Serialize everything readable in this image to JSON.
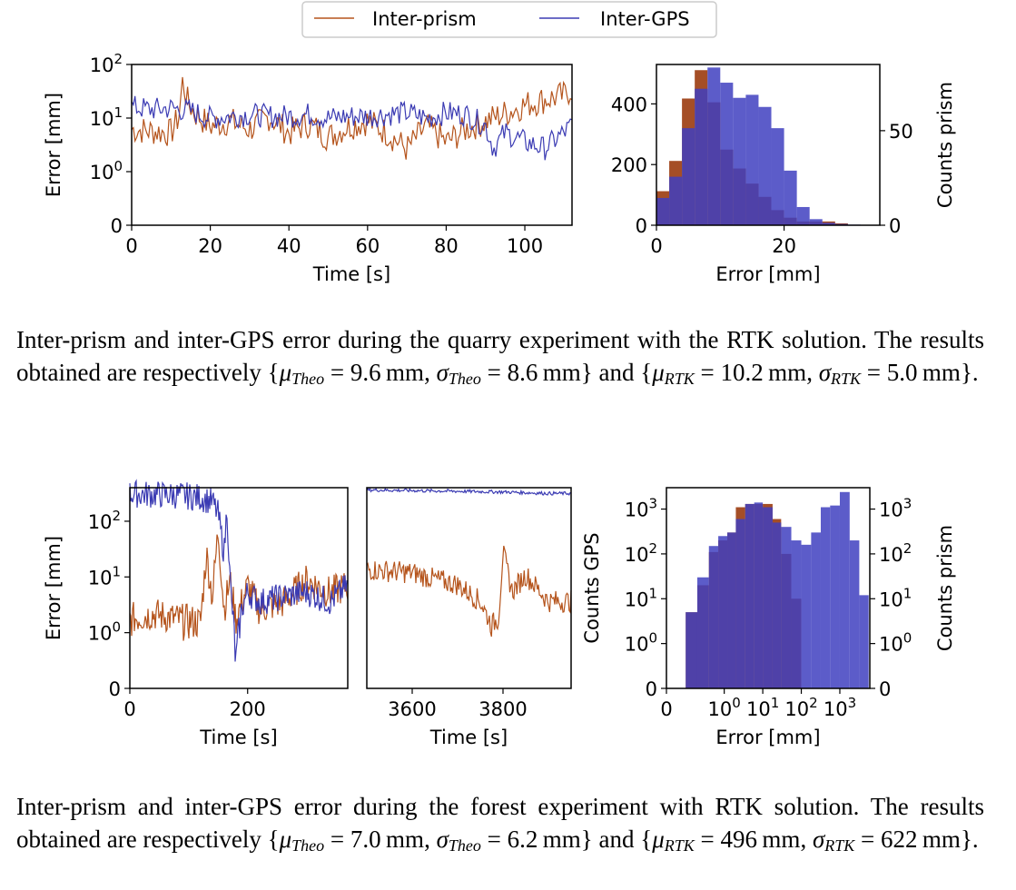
{
  "colors": {
    "prism": "#b5541c",
    "gps": "#3b3bb3",
    "hist_prism": "#a0441a",
    "hist_gps": "#3f3fbf"
  },
  "legend": {
    "prism_label": "Inter-prism",
    "gps_label": "Inter-GPS"
  },
  "chart_data": [
    {
      "type": "line",
      "name": "quarry-timeseries",
      "xlabel": "Time [s]",
      "ylabel": "Error [mm]",
      "xlim": [
        0,
        112
      ],
      "yscale": "symlog",
      "ylim": [
        0,
        100
      ],
      "x_ticks": [
        "0",
        "20",
        "40",
        "60",
        "80",
        "100"
      ],
      "y_ticks": [
        "0",
        "10^0",
        "10^1",
        "10^2"
      ],
      "series": [
        {
          "name": "Inter-prism",
          "x": [
            0,
            5,
            10,
            12,
            13,
            14,
            16,
            20,
            25,
            30,
            35,
            40,
            45,
            50,
            55,
            60,
            65,
            70,
            75,
            80,
            85,
            90,
            95,
            100,
            105,
            110,
            112
          ],
          "y": [
            7,
            6.5,
            6,
            12,
            60,
            25,
            14,
            8,
            10,
            7,
            12,
            6,
            9,
            5,
            8,
            10,
            6,
            3,
            8,
            4,
            7,
            10,
            14,
            20,
            25,
            30,
            40
          ]
        },
        {
          "name": "Inter-GPS",
          "x": [
            0,
            5,
            10,
            15,
            20,
            25,
            30,
            35,
            40,
            45,
            50,
            55,
            60,
            65,
            70,
            75,
            80,
            85,
            90,
            92,
            95,
            100,
            105,
            110,
            112
          ],
          "y": [
            18,
            16,
            17,
            15,
            11,
            12,
            13,
            12,
            12,
            13,
            11,
            12,
            12,
            13,
            14,
            11,
            14,
            13,
            8,
            3,
            6,
            4,
            3,
            6,
            8
          ]
        }
      ]
    },
    {
      "type": "bar",
      "name": "quarry-histogram",
      "xlabel": "Error [mm]",
      "ylabel_right": "Counts prism",
      "xlim": [
        0,
        35
      ],
      "ylim_left": [
        0,
        530
      ],
      "ylim_right": [
        0,
        85
      ],
      "x_ticks": [
        "0",
        "20"
      ],
      "y_ticks_left": [
        "0",
        "200",
        "400"
      ],
      "y_ticks_right": [
        "0",
        "50"
      ],
      "bin_edges": [
        0,
        2,
        4,
        6,
        8,
        10,
        12,
        14,
        16,
        18,
        20,
        22,
        24,
        26,
        28,
        30,
        32,
        34
      ],
      "series": [
        {
          "name": "Inter-GPS",
          "axis": "left",
          "values": [
            90,
            160,
            320,
            450,
            520,
            470,
            420,
            430,
            390,
            320,
            180,
            60,
            20,
            8,
            4,
            2,
            1
          ]
        },
        {
          "name": "Inter-prism",
          "axis": "right",
          "values": [
            18,
            34,
            67,
            82,
            65,
            40,
            30,
            22,
            15,
            8,
            4,
            2,
            2,
            2,
            1,
            0,
            0
          ]
        }
      ]
    },
    {
      "type": "line",
      "name": "forest-timeseries-a",
      "xlabel": "Time [s]",
      "ylabel": "Error [mm]",
      "xlim": [
        0,
        370
      ],
      "yscale": "symlog",
      "ylim": [
        0,
        400
      ],
      "x_ticks": [
        "0",
        "200"
      ],
      "y_ticks": [
        "0",
        "10^0",
        "10^1",
        "10^2"
      ],
      "series": [
        {
          "name": "Inter-prism",
          "x": [
            0,
            40,
            80,
            120,
            130,
            140,
            150,
            160,
            170,
            180,
            200,
            220,
            260,
            300,
            340,
            370
          ],
          "y": [
            2,
            2.5,
            2,
            1.8,
            30,
            5,
            80,
            3,
            10,
            2,
            8,
            3,
            4,
            10,
            6,
            8
          ]
        },
        {
          "name": "Inter-GPS",
          "x": [
            0,
            40,
            80,
            120,
            140,
            150,
            160,
            165,
            170,
            180,
            190,
            200,
            220,
            260,
            300,
            340,
            370
          ],
          "y": [
            350,
            340,
            330,
            300,
            250,
            150,
            30,
            200,
            10,
            0.5,
            3,
            6,
            4,
            5,
            6,
            4,
            8
          ]
        }
      ]
    },
    {
      "type": "line",
      "name": "forest-timeseries-b",
      "xlabel": "Time [s]",
      "xlim": [
        3500,
        3950
      ],
      "yscale": "symlog",
      "ylim": [
        0,
        400
      ],
      "x_ticks": [
        "3600",
        "3800"
      ],
      "series": [
        {
          "name": "Inter-prism",
          "x": [
            3500,
            3550,
            3600,
            3650,
            3700,
            3750,
            3775,
            3790,
            3800,
            3820,
            3850,
            3900,
            3950
          ],
          "y": [
            15,
            14,
            13,
            10,
            8,
            4,
            1.5,
            2,
            30,
            6,
            12,
            4,
            4
          ]
        },
        {
          "name": "Inter-GPS",
          "x": [
            3500,
            3600,
            3700,
            3800,
            3900,
            3950
          ],
          "y": [
            370,
            360,
            350,
            340,
            320,
            320
          ]
        }
      ]
    },
    {
      "type": "bar",
      "name": "forest-histogram",
      "xlabel": "Error [mm]",
      "ylabel_left": "Counts GPS",
      "ylabel_right": "Counts prism",
      "xscale": "symlog",
      "xlim": [
        0,
        6000
      ],
      "yscale": "symlog",
      "ylim_left": [
        0,
        3000
      ],
      "ylim_right": [
        0,
        3000
      ],
      "x_ticks": [
        "0",
        "10^0",
        "10^1",
        "10^2",
        "10^3"
      ],
      "y_ticks_left": [
        "0",
        "10^0",
        "10^1",
        "10^2",
        "10^3"
      ],
      "y_ticks_right": [
        "0",
        "10^0",
        "10^1",
        "10^2",
        "10^3"
      ],
      "bin_edges": [
        0.1,
        0.2,
        0.4,
        0.7,
        1.2,
        2,
        3.5,
        6,
        10,
        18,
        30,
        55,
        100,
        180,
        320,
        560,
        1000,
        1800,
        3200,
        5600
      ],
      "series": [
        {
          "name": "Inter-GPS",
          "axis": "left",
          "values": [
            5,
            30,
            150,
            250,
            300,
            600,
            1300,
            1400,
            1100,
            500,
            400,
            200,
            160,
            300,
            1100,
            1200,
            2400,
            200,
            12
          ]
        },
        {
          "name": "Inter-prism",
          "axis": "right",
          "values": [
            5,
            20,
            110,
            200,
            300,
            1100,
            1300,
            1300,
            1300,
            600,
            100,
            10,
            0,
            0,
            0,
            0,
            0,
            0,
            0
          ]
        }
      ]
    }
  ],
  "captions": {
    "quarry": {
      "text": "Inter-prism and inter-GPS error during the quarry experiment with the RTK solution. The results obtained are respectively",
      "theo_mu": "9.6 mm",
      "theo_sigma": "8.6 mm",
      "rtk_mu": "10.2 mm",
      "rtk_sigma": "5.0 mm"
    },
    "forest": {
      "text": "Inter-prism and inter-GPS error during the forest experiment with RTK solution. The results obtained are respectively",
      "theo_mu": "7.0 mm",
      "theo_sigma": "6.2 mm",
      "rtk_mu": "496 mm",
      "rtk_sigma": "622 mm"
    },
    "sym": {
      "mu": "μ",
      "sigma": "σ",
      "theo": "Theo",
      "rtk": "RTK"
    }
  }
}
